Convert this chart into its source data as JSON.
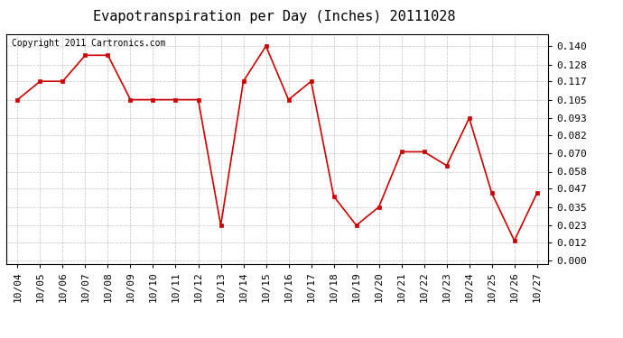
{
  "title": "Evapotranspiration per Day (Inches) 20111028",
  "copyright": "Copyright 2011 Cartronics.com",
  "x_labels": [
    "10/04",
    "10/05",
    "10/06",
    "10/07",
    "10/08",
    "10/09",
    "10/10",
    "10/11",
    "10/12",
    "10/13",
    "10/14",
    "10/15",
    "10/16",
    "10/17",
    "10/18",
    "10/19",
    "10/20",
    "10/21",
    "10/22",
    "10/23",
    "10/24",
    "10/25",
    "10/26",
    "10/27"
  ],
  "y_values": [
    0.105,
    0.117,
    0.117,
    0.134,
    0.134,
    0.105,
    0.105,
    0.105,
    0.105,
    0.023,
    0.117,
    0.14,
    0.105,
    0.117,
    0.042,
    0.023,
    0.035,
    0.071,
    0.071,
    0.062,
    0.093,
    0.044,
    0.013,
    0.044
  ],
  "line_color": "#cc0000",
  "marker_color": "#cc0000",
  "bg_color": "#ffffff",
  "plot_bg_color": "#ffffff",
  "grid_color": "#bbbbbb",
  "y_ticks": [
    0.0,
    0.012,
    0.023,
    0.035,
    0.047,
    0.058,
    0.07,
    0.082,
    0.093,
    0.105,
    0.117,
    0.128,
    0.14
  ],
  "ylim": [
    -0.002,
    0.148
  ],
  "title_fontsize": 11,
  "copyright_fontsize": 7,
  "tick_fontsize": 8,
  "fig_width": 6.9,
  "fig_height": 3.75,
  "dpi": 100
}
